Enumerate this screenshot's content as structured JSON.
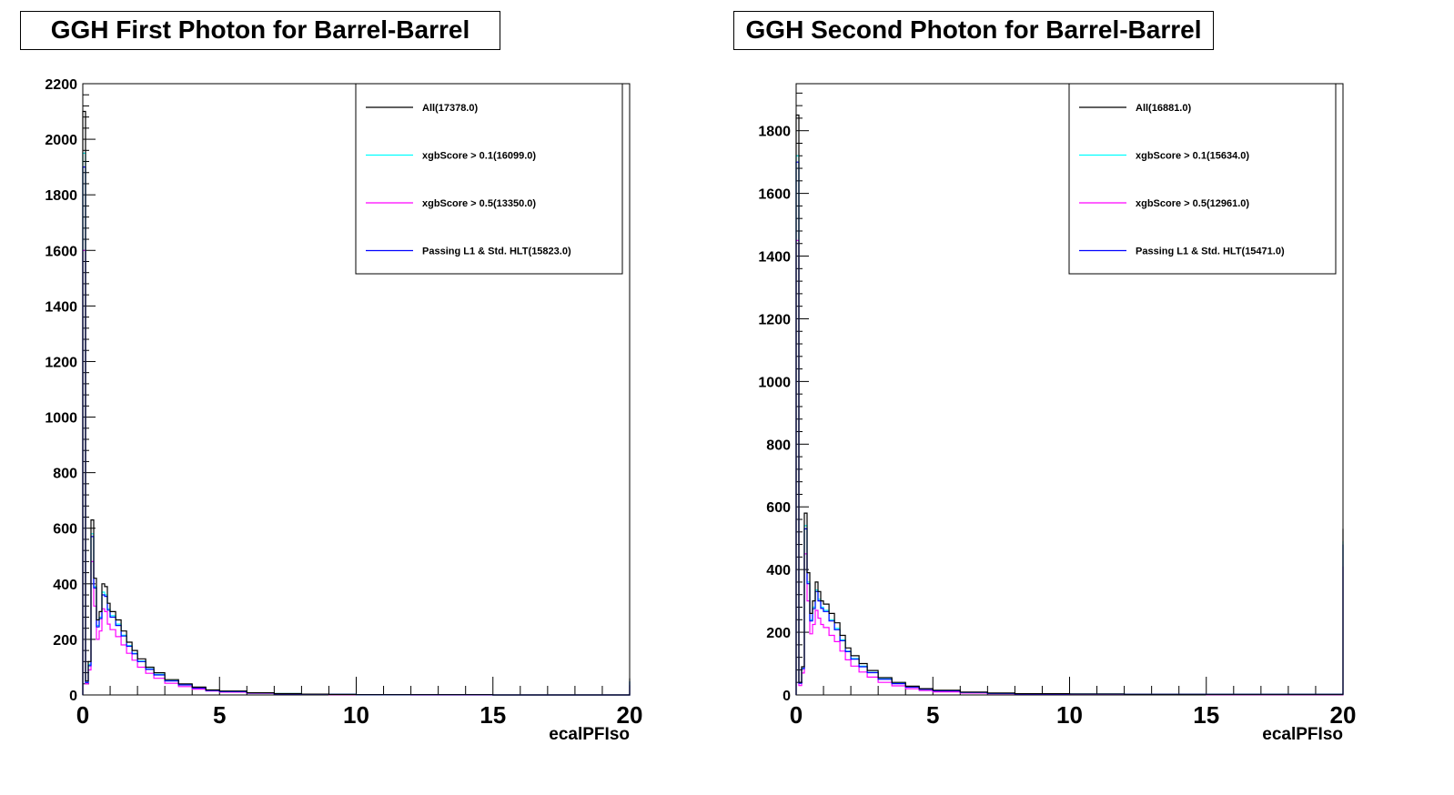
{
  "chart_data": [
    {
      "type": "line",
      "title": "GGH First Photon for Barrel-Barrel",
      "xlabel": "ecalPFIso",
      "ylabel": "",
      "xlim": [
        0,
        20
      ],
      "ylim": [
        0,
        2200
      ],
      "x_ticks": [
        "0",
        "5",
        "10",
        "15",
        "20"
      ],
      "y_ticks": [
        "0",
        "200",
        "400",
        "600",
        "800",
        "1000",
        "1200",
        "1400",
        "1600",
        "1800",
        "2000",
        "2200"
      ],
      "legend_position": "top-right",
      "series": [
        {
          "name": "All(17378.0)",
          "color": "#000000",
          "x": [
            0.0,
            0.1,
            0.2,
            0.3,
            0.4,
            0.5,
            0.6,
            0.7,
            0.8,
            0.9,
            1.0,
            1.2,
            1.4,
            1.6,
            1.8,
            2.0,
            2.3,
            2.6,
            3.0,
            3.5,
            4.0,
            4.5,
            5.0,
            6.0,
            7.0,
            8.0,
            9.0,
            10.0,
            12.0,
            15.0,
            19.9,
            20.0
          ],
          "values": [
            2100,
            50,
            120,
            630,
            420,
            270,
            300,
            400,
            390,
            330,
            300,
            270,
            230,
            190,
            160,
            130,
            100,
            80,
            55,
            40,
            28,
            18,
            14,
            8,
            5,
            3,
            2,
            1,
            1,
            0,
            0,
            60
          ]
        },
        {
          "name": "xgbScore > 0.1(16099.0)",
          "color": "#00ffff",
          "x": [
            0.0,
            0.1,
            0.2,
            0.3,
            0.4,
            0.5,
            0.6,
            0.7,
            0.8,
            0.9,
            1.0,
            1.2,
            1.4,
            1.6,
            1.8,
            2.0,
            2.3,
            2.6,
            3.0,
            3.5,
            4.0,
            4.5,
            5.0,
            6.0,
            7.0,
            8.0,
            9.0,
            10.0,
            12.0,
            15.0,
            19.9,
            20.0
          ],
          "values": [
            1950,
            45,
            110,
            580,
            390,
            250,
            280,
            370,
            360,
            310,
            285,
            255,
            215,
            178,
            150,
            122,
            94,
            74,
            51,
            37,
            26,
            17,
            13,
            7,
            5,
            3,
            2,
            1,
            1,
            0,
            0,
            50
          ]
        },
        {
          "name": "xgbScore > 0.5(13350.0)",
          "color": "#ff00ff",
          "x": [
            0.0,
            0.1,
            0.2,
            0.3,
            0.4,
            0.5,
            0.6,
            0.7,
            0.8,
            0.9,
            1.0,
            1.2,
            1.4,
            1.6,
            1.8,
            2.0,
            2.3,
            2.6,
            3.0,
            3.5,
            4.0,
            4.5,
            5.0,
            6.0,
            7.0,
            8.0,
            9.0,
            10.0,
            12.0,
            15.0,
            19.9,
            20.0
          ],
          "values": [
            1600,
            40,
            90,
            480,
            320,
            200,
            230,
            310,
            300,
            255,
            235,
            210,
            180,
            150,
            125,
            100,
            78,
            60,
            42,
            30,
            21,
            14,
            10,
            6,
            4,
            2,
            1,
            1,
            0,
            0,
            0,
            35
          ]
        },
        {
          "name": "Passing L1 & Std. HLT(15823.0)",
          "color": "#0000ff",
          "x": [
            0.0,
            0.1,
            0.2,
            0.3,
            0.4,
            0.5,
            0.6,
            0.7,
            0.8,
            0.9,
            1.0,
            1.2,
            1.4,
            1.6,
            1.8,
            2.0,
            2.3,
            2.6,
            3.0,
            3.5,
            4.0,
            4.5,
            5.0,
            6.0,
            7.0,
            8.0,
            9.0,
            10.0,
            12.0,
            15.0,
            19.9,
            20.0
          ],
          "values": [
            1900,
            45,
            105,
            570,
            385,
            245,
            275,
            360,
            355,
            305,
            280,
            250,
            212,
            175,
            148,
            120,
            92,
            72,
            50,
            36,
            25,
            16,
            12,
            7,
            4,
            3,
            2,
            1,
            1,
            0,
            0,
            48
          ]
        }
      ]
    },
    {
      "type": "line",
      "title": "GGH Second Photon for Barrel-Barrel",
      "xlabel": "ecalPFIso",
      "ylabel": "",
      "xlim": [
        0,
        20
      ],
      "ylim": [
        0,
        1950
      ],
      "x_ticks": [
        "0",
        "5",
        "10",
        "15",
        "20"
      ],
      "y_ticks": [
        "0",
        "200",
        "400",
        "600",
        "800",
        "1000",
        "1200",
        "1400",
        "1600",
        "1800"
      ],
      "legend_position": "top-right",
      "series": [
        {
          "name": "All(16881.0)",
          "color": "#000000",
          "x": [
            0.0,
            0.1,
            0.2,
            0.3,
            0.4,
            0.5,
            0.6,
            0.7,
            0.8,
            0.9,
            1.0,
            1.2,
            1.4,
            1.6,
            1.8,
            2.0,
            2.3,
            2.6,
            3.0,
            3.5,
            4.0,
            4.5,
            5.0,
            6.0,
            7.0,
            8.0,
            10.0,
            12.0,
            15.0,
            18.0,
            19.9,
            20.0
          ],
          "values": [
            1850,
            40,
            90,
            580,
            390,
            260,
            300,
            360,
            330,
            300,
            290,
            260,
            230,
            190,
            150,
            125,
            100,
            78,
            55,
            40,
            28,
            20,
            15,
            9,
            6,
            4,
            3,
            2,
            2,
            2,
            2,
            530
          ]
        },
        {
          "name": "xgbScore > 0.1(15634.0)",
          "color": "#00ffff",
          "x": [
            0.0,
            0.1,
            0.2,
            0.3,
            0.4,
            0.5,
            0.6,
            0.7,
            0.8,
            0.9,
            1.0,
            1.2,
            1.4,
            1.6,
            1.8,
            2.0,
            2.3,
            2.6,
            3.0,
            3.5,
            4.0,
            4.5,
            5.0,
            6.0,
            7.0,
            8.0,
            10.0,
            12.0,
            15.0,
            18.0,
            19.9,
            20.0
          ],
          "values": [
            1720,
            38,
            85,
            540,
            360,
            240,
            280,
            335,
            305,
            280,
            270,
            240,
            212,
            176,
            140,
            116,
            92,
            72,
            51,
            37,
            26,
            18,
            14,
            8,
            5,
            4,
            3,
            2,
            2,
            2,
            2,
            490
          ]
        },
        {
          "name": "xgbScore > 0.5(12961.0)",
          "color": "#ff00ff",
          "x": [
            0.0,
            0.1,
            0.2,
            0.3,
            0.4,
            0.5,
            0.6,
            0.7,
            0.8,
            0.9,
            1.0,
            1.2,
            1.4,
            1.6,
            1.8,
            2.0,
            2.3,
            2.6,
            3.0,
            3.5,
            4.0,
            4.5,
            5.0,
            6.0,
            7.0,
            8.0,
            10.0,
            12.0,
            15.0,
            18.0,
            19.9,
            20.0
          ],
          "values": [
            1450,
            30,
            70,
            450,
            300,
            195,
            225,
            270,
            245,
            225,
            215,
            190,
            170,
            140,
            112,
            92,
            73,
            57,
            40,
            29,
            20,
            14,
            10,
            6,
            4,
            3,
            2,
            2,
            1,
            1,
            1,
            410
          ]
        },
        {
          "name": "Passing L1 & Std. HLT(15471.0)",
          "color": "#0000ff",
          "x": [
            0.0,
            0.1,
            0.2,
            0.3,
            0.4,
            0.5,
            0.6,
            0.7,
            0.8,
            0.9,
            1.0,
            1.2,
            1.4,
            1.6,
            1.8,
            2.0,
            2.3,
            2.6,
            3.0,
            3.5,
            4.0,
            4.5,
            5.0,
            6.0,
            7.0,
            8.0,
            10.0,
            12.0,
            15.0,
            18.0,
            19.9,
            20.0
          ],
          "values": [
            1700,
            37,
            84,
            530,
            355,
            236,
            275,
            330,
            300,
            276,
            266,
            236,
            208,
            173,
            138,
            114,
            90,
            71,
            50,
            36,
            25,
            18,
            13,
            8,
            5,
            3,
            3,
            2,
            2,
            2,
            2,
            480
          ]
        }
      ]
    }
  ]
}
